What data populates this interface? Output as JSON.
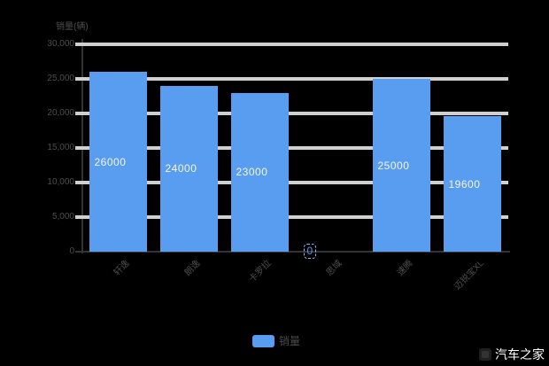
{
  "page": {
    "background": "#000000"
  },
  "axes": {
    "y_title": "销量(辆)",
    "ytick_labels": [
      "0",
      "5,000",
      "10,000",
      "15,000",
      "20,000",
      "25,000",
      "30,000"
    ]
  },
  "legend": {
    "label": "销量"
  },
  "watermark": {
    "text": "汽车之家"
  },
  "chart_data": {
    "type": "bar",
    "title": "",
    "xlabel": "",
    "ylabel": "销量(辆)",
    "categories": [
      "轩逸",
      "朗逸",
      "卡罗拉",
      "思域",
      "速腾",
      "迈锐宝XL"
    ],
    "values": [
      26000,
      24000,
      23000,
      0,
      25000,
      19600
    ],
    "value_labels": [
      "26000",
      "24000",
      "23000",
      "0",
      "25000",
      "19600"
    ],
    "ylim": [
      0,
      30000
    ],
    "ytick_step": 5000,
    "grid": true,
    "legend_position": "bottom",
    "legend_entries": [
      "销量"
    ]
  },
  "colors": {
    "background": "#000000",
    "bar": "#589df0",
    "gridline": "#d0d0d0",
    "axis_line": "#333333",
    "tick_text": "#4d4d4d",
    "value_text": "#f5f5f5",
    "zero_label_text": "#4d97f2",
    "zero_label_border": "#86bbf7",
    "legend_text": "#4d4d4d",
    "watermark_text": "#ffffff"
  }
}
